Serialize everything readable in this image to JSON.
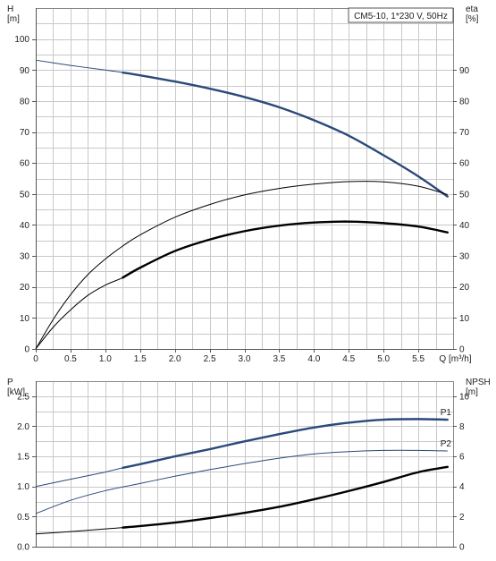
{
  "legend_box": "CM5-10, 1*230 V, 50Hz",
  "colors": {
    "blue": "#2a4a7a",
    "black": "#000000",
    "grid": "#c8c8c8"
  },
  "chart_data": [
    {
      "type": "line",
      "name": "head-efficiency",
      "xlabel": "Q [m³/h]",
      "ylabel_left": "H\n[m]",
      "ylabel_right": "eta\n[%]",
      "xlim": [
        0,
        6.0
      ],
      "ylim_left": [
        0,
        110
      ],
      "ylim_right": [
        0,
        110
      ],
      "x_ticks": [
        "0",
        "0.5",
        "1.0",
        "1.5",
        "2.0",
        "2.5",
        "3.0",
        "3.5",
        "4.0",
        "4.5",
        "5.0",
        "5.5"
      ],
      "y_ticks_left": [
        "0",
        "10",
        "20",
        "30",
        "40",
        "50",
        "60",
        "70",
        "80",
        "90",
        "100"
      ],
      "y_ticks_right": [
        "0",
        "10",
        "20",
        "30",
        "40",
        "50",
        "60",
        "70",
        "80",
        "90"
      ],
      "grid": true,
      "series": [
        {
          "role": "H",
          "color": "#2a4a7a",
          "x": [
            0,
            0.5,
            1.0,
            1.25,
            1.5,
            2.0,
            2.5,
            3.0,
            3.5,
            4.0,
            4.5,
            5.0,
            5.5,
            5.92
          ],
          "y": [
            93.2,
            91.5,
            90.0,
            89.2,
            88.3,
            86.3,
            84.0,
            81.3,
            78.0,
            73.8,
            68.8,
            62.5,
            55.7,
            49.2
          ],
          "thick_from": 1.25
        },
        {
          "role": "eta (upper)",
          "color": "#000000",
          "x": [
            0,
            0.25,
            0.5,
            0.75,
            1.0,
            1.25,
            1.5,
            2.0,
            2.5,
            3.0,
            3.5,
            4.0,
            4.5,
            5.0,
            5.5,
            5.92
          ],
          "y": [
            0,
            9.5,
            17.5,
            24.0,
            29.0,
            33.2,
            36.8,
            42.5,
            46.6,
            49.7,
            51.8,
            53.2,
            54.0,
            53.9,
            52.5,
            49.8
          ]
        },
        {
          "role": "eta (lower)",
          "color": "#000000",
          "x": [
            0,
            0.25,
            0.5,
            0.75,
            1.0,
            1.25,
            1.5,
            2.0,
            2.5,
            3.0,
            3.5,
            4.0,
            4.5,
            5.0,
            5.5,
            5.92
          ],
          "y": [
            0,
            7.0,
            12.6,
            17.3,
            20.6,
            23.0,
            26.2,
            31.6,
            35.3,
            38.0,
            39.8,
            40.8,
            41.1,
            40.6,
            39.5,
            37.6
          ],
          "thick_from": 1.25
        }
      ]
    },
    {
      "type": "line",
      "name": "power-npsh",
      "xlim": [
        0,
        6.0
      ],
      "ylabel_left": "P\n[kW]",
      "ylabel_right": "NPSH\n[m]",
      "ylim_left": [
        0,
        2.75
      ],
      "ylim_right": [
        0,
        11
      ],
      "y_ticks_left": [
        "0.0",
        "0.5",
        "1.0",
        "1.5",
        "2.0",
        "2.5"
      ],
      "y_ticks_right": [
        "0",
        "2",
        "4",
        "6",
        "8",
        "10"
      ],
      "grid": true,
      "series": [
        {
          "name": "P1",
          "color": "#2a4a7a",
          "x": [
            0,
            0.5,
            1.0,
            1.25,
            1.5,
            2.0,
            2.5,
            3.0,
            3.5,
            4.0,
            4.5,
            5.0,
            5.5,
            5.92
          ],
          "y": [
            1.0,
            1.12,
            1.24,
            1.31,
            1.37,
            1.5,
            1.62,
            1.75,
            1.87,
            1.98,
            2.06,
            2.11,
            2.12,
            2.11
          ],
          "thick_from": 1.25
        },
        {
          "name": "P2",
          "color": "#2a4a7a",
          "x": [
            0,
            0.5,
            1.0,
            1.5,
            2.0,
            2.5,
            3.0,
            3.5,
            4.0,
            4.5,
            5.0,
            5.5,
            5.92
          ],
          "y": [
            0.55,
            0.77,
            0.93,
            1.05,
            1.17,
            1.28,
            1.38,
            1.47,
            1.54,
            1.58,
            1.6,
            1.6,
            1.59
          ]
        },
        {
          "role": "NPSH",
          "color": "#000000",
          "x": [
            0,
            0.5,
            1.0,
            1.25,
            1.5,
            2.0,
            2.5,
            3.0,
            3.5,
            4.0,
            4.5,
            5.0,
            5.5,
            5.92
          ],
          "y": [
            0.85,
            1.0,
            1.18,
            1.27,
            1.37,
            1.6,
            1.9,
            2.25,
            2.65,
            3.15,
            3.7,
            4.3,
            4.95,
            5.3
          ],
          "thick_from": 1.25
        }
      ]
    }
  ]
}
